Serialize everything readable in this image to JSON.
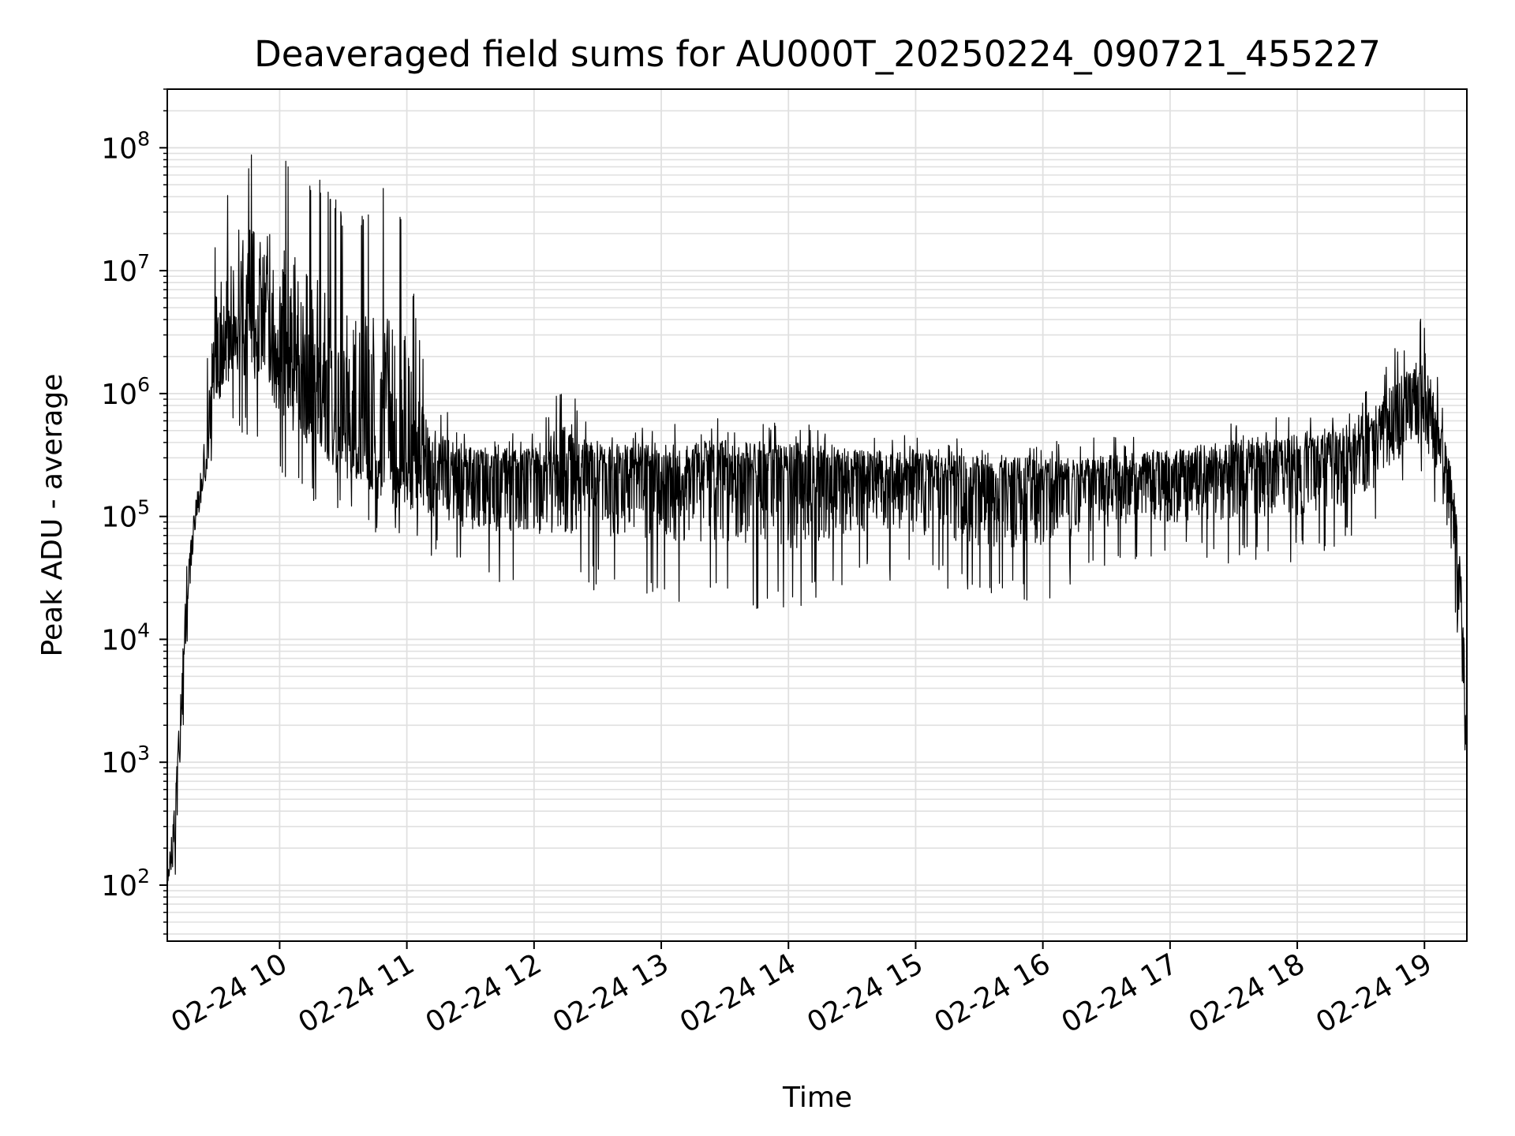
{
  "figure": {
    "title": "Deaveraged field sums for AU000T_20250224_090721_455227",
    "xlabel": "Time",
    "ylabel": "Peak ADU - average"
  },
  "chart_data": {
    "type": "line",
    "title": "Deaveraged field sums for AU000T_20250224_090721_455227",
    "xlabel": "Time",
    "ylabel": "Peak ADU - average",
    "x_axis": "datetime",
    "y_scale": "log",
    "grid": true,
    "line_color": "#000000",
    "grid_color": "#e0e0e0",
    "xlim": [
      "2025-02-24 09:07",
      "2025-02-24 19:20"
    ],
    "ylim": [
      35,
      300000000.0
    ],
    "x_ticks": [
      "02-24 10",
      "02-24 11",
      "02-24 12",
      "02-24 13",
      "02-24 14",
      "02-24 15",
      "02-24 16",
      "02-24 17",
      "02-24 18",
      "02-24 19"
    ],
    "x_tick_values": [
      "2025-02-24 10:00",
      "2025-02-24 11:00",
      "2025-02-24 12:00",
      "2025-02-24 13:00",
      "2025-02-24 14:00",
      "2025-02-24 15:00",
      "2025-02-24 16:00",
      "2025-02-24 17:00",
      "2025-02-24 18:00",
      "2025-02-24 19:00"
    ],
    "y_ticks": [
      {
        "base": "10",
        "exp": "2",
        "value": 100
      },
      {
        "base": "10",
        "exp": "3",
        "value": 1000
      },
      {
        "base": "10",
        "exp": "4",
        "value": 10000
      },
      {
        "base": "10",
        "exp": "5",
        "value": 100000
      },
      {
        "base": "10",
        "exp": "6",
        "value": 1000000
      },
      {
        "base": "10",
        "exp": "7",
        "value": 10000000
      },
      {
        "base": "10",
        "exp": "8",
        "value": 100000000
      }
    ],
    "series": [
      {
        "values_envelope": [
          {
            "t": "2025-02-24 09:07",
            "low": 100,
            "mid": 100,
            "high": 110
          },
          {
            "t": "2025-02-24 09:10",
            "low": 75,
            "mid": 300,
            "high": 700
          },
          {
            "t": "2025-02-24 09:13",
            "low": 300,
            "mid": 2000,
            "high": 5000
          },
          {
            "t": "2025-02-24 09:16",
            "low": 8000,
            "mid": 20000,
            "high": 40000
          },
          {
            "t": "2025-02-24 09:20",
            "low": 60000,
            "mid": 100000,
            "high": 150000
          },
          {
            "t": "2025-02-24 09:25",
            "low": 150000,
            "mid": 250000,
            "high": 1200000
          },
          {
            "t": "2025-02-24 09:30",
            "low": 400000,
            "mid": 2000000,
            "high": 20000000
          },
          {
            "t": "2025-02-24 09:40",
            "low": 500000,
            "mid": 5000000,
            "high": 80000000
          },
          {
            "t": "2025-02-24 09:50",
            "low": 400000,
            "mid": 5000000,
            "high": 100000000
          },
          {
            "t": "2025-02-24 10:00",
            "low": 200000,
            "mid": 3000000,
            "high": 140000000
          },
          {
            "t": "2025-02-24 10:10",
            "low": 150000,
            "mid": 1500000,
            "high": 50000000
          },
          {
            "t": "2025-02-24 10:20",
            "low": 100000,
            "mid": 800000,
            "high": 60000000
          },
          {
            "t": "2025-02-24 10:30",
            "low": 100000,
            "mid": 500000,
            "high": 30000000
          },
          {
            "t": "2025-02-24 10:40",
            "low": 80000,
            "mid": 400000,
            "high": 30000000
          },
          {
            "t": "2025-02-24 10:50",
            "low": 60000,
            "mid": 300000,
            "high": 60000000
          },
          {
            "t": "2025-02-24 11:00",
            "low": 50000,
            "mid": 300000,
            "high": 20000000
          },
          {
            "t": "2025-02-24 11:10",
            "low": 50000,
            "mid": 250000,
            "high": 1000000
          },
          {
            "t": "2025-02-24 11:30",
            "low": 30000,
            "mid": 250000,
            "high": 500000
          },
          {
            "t": "2025-02-24 12:00",
            "low": 25000,
            "mid": 250000,
            "high": 500000
          },
          {
            "t": "2025-02-24 12:15",
            "low": 25000,
            "mid": 250000,
            "high": 1300000
          },
          {
            "t": "2025-02-24 12:30",
            "low": 25000,
            "mid": 250000,
            "high": 500000
          },
          {
            "t": "2025-02-24 13:00",
            "low": 20000,
            "mid": 250000,
            "high": 550000
          },
          {
            "t": "2025-02-24 13:30",
            "low": 20000,
            "mid": 250000,
            "high": 650000
          },
          {
            "t": "2025-02-24 14:00",
            "low": 15000,
            "mid": 250000,
            "high": 600000
          },
          {
            "t": "2025-02-24 14:30",
            "low": 30000,
            "mid": 230000,
            "high": 500000
          },
          {
            "t": "2025-02-24 15:00",
            "low": 30000,
            "mid": 220000,
            "high": 450000
          },
          {
            "t": "2025-02-24 15:30",
            "low": 20000,
            "mid": 200000,
            "high": 450000
          },
          {
            "t": "2025-02-24 16:00",
            "low": 20000,
            "mid": 200000,
            "high": 400000
          },
          {
            "t": "2025-02-24 16:30",
            "low": 40000,
            "mid": 200000,
            "high": 450000
          },
          {
            "t": "2025-02-24 17:00",
            "low": 40000,
            "mid": 230000,
            "high": 500000
          },
          {
            "t": "2025-02-24 17:30",
            "low": 40000,
            "mid": 270000,
            "high": 600000
          },
          {
            "t": "2025-02-24 18:00",
            "low": 40000,
            "mid": 300000,
            "high": 700000
          },
          {
            "t": "2025-02-24 18:30",
            "low": 60000,
            "mid": 350000,
            "high": 900000
          },
          {
            "t": "2025-02-24 18:50",
            "low": 150000,
            "mid": 700000,
            "high": 3000000
          },
          {
            "t": "2025-02-24 19:00",
            "low": 200000,
            "mid": 1000000,
            "high": 4500000
          },
          {
            "t": "2025-02-24 19:08",
            "low": 80000,
            "mid": 300000,
            "high": 1000000
          },
          {
            "t": "2025-02-24 19:14",
            "low": 20000,
            "mid": 100000,
            "high": 300000
          },
          {
            "t": "2025-02-24 19:18",
            "low": 3000,
            "mid": 15000,
            "high": 50000
          },
          {
            "t": "2025-02-24 19:20",
            "low": 550,
            "mid": 1500,
            "high": 4500
          }
        ]
      }
    ]
  }
}
